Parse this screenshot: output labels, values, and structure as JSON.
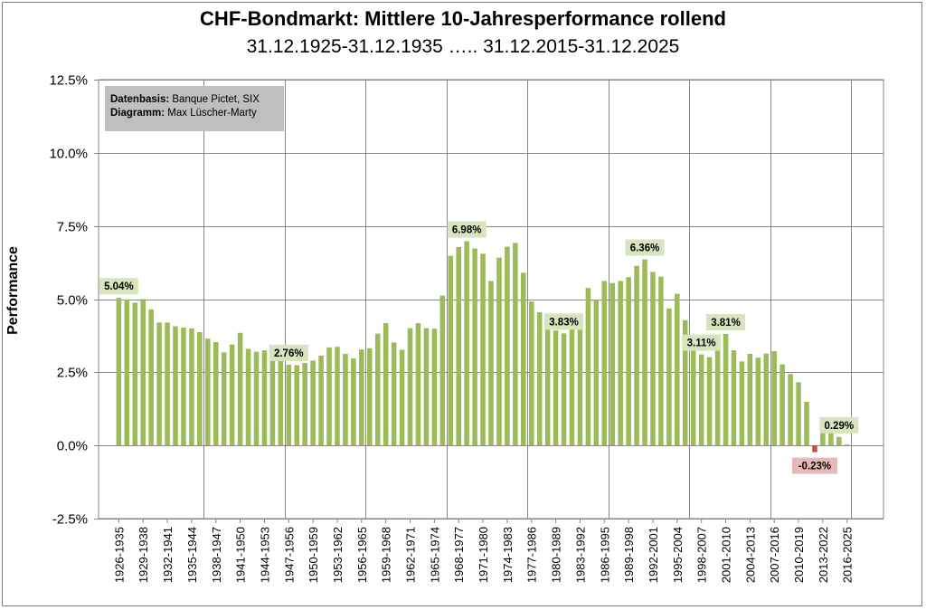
{
  "chart_data": {
    "type": "bar",
    "title": "CHF-Bondmarkt: Mittlere 10-Jahresperformance rollend",
    "subtitle": "31.12.1925-31.12.1935 ….. 31.12.2015-31.12.2025",
    "ylabel": "Performance",
    "xlabel": "",
    "ylim": [
      -2.5,
      12.5
    ],
    "yticks": [
      -2.5,
      0.0,
      2.5,
      5.0,
      7.5,
      10.0,
      12.5
    ],
    "ytick_labels": [
      "-2.5%",
      "0.0%",
      "2.5%",
      "5.0%",
      "7.5%",
      "10.0%",
      "12.5%"
    ],
    "grid": true,
    "legend": "none",
    "source_box": {
      "line1_label": "Datenbasis:",
      "line1_value": "Banque Pictet, SIX",
      "line2_label": "Diagramm:",
      "line2_value": "Max Lüscher-Marty"
    },
    "tick_labels": [
      "1926-1935",
      "1929-1938",
      "1932-1941",
      "1935-1944",
      "1938-1947",
      "1941-1950",
      "1944-1953",
      "1947-1956",
      "1950-1959",
      "1953-1962",
      "1956-1965",
      "1959-1968",
      "1962-1971",
      "1965-1974",
      "1968-1977",
      "1971-1980",
      "1974-1983",
      "1977-1986",
      "1980-1989",
      "1983-1992",
      "1986-1995",
      "1989-1998",
      "1992-2001",
      "1995-2004",
      "1998-2007",
      "2001-2010",
      "2004-2013",
      "2007-2016",
      "2010-2019",
      "2013-2022",
      "2016-2025"
    ],
    "categories": [
      "1926-1935",
      "1927-1936",
      "1928-1937",
      "1929-1938",
      "1930-1939",
      "1931-1940",
      "1932-1941",
      "1933-1942",
      "1934-1943",
      "1935-1944",
      "1936-1945",
      "1937-1946",
      "1938-1947",
      "1939-1948",
      "1940-1949",
      "1941-1950",
      "1942-1951",
      "1943-1952",
      "1944-1953",
      "1945-1954",
      "1946-1955",
      "1947-1956",
      "1948-1957",
      "1949-1958",
      "1950-1959",
      "1951-1960",
      "1952-1961",
      "1953-1962",
      "1954-1963",
      "1955-1964",
      "1956-1965",
      "1957-1966",
      "1958-1967",
      "1959-1968",
      "1960-1969",
      "1961-1970",
      "1962-1971",
      "1963-1972",
      "1964-1973",
      "1965-1974",
      "1966-1975",
      "1967-1976",
      "1968-1977",
      "1969-1978",
      "1970-1979",
      "1971-1980",
      "1972-1981",
      "1973-1982",
      "1974-1983",
      "1975-1984",
      "1976-1985",
      "1977-1986",
      "1978-1987",
      "1979-1988",
      "1980-1989",
      "1981-1990",
      "1982-1991",
      "1983-1992",
      "1984-1993",
      "1985-1994",
      "1986-1995",
      "1987-1996",
      "1988-1997",
      "1989-1998",
      "1990-1999",
      "1991-2000",
      "1992-2001",
      "1993-2002",
      "1994-2003",
      "1995-2004",
      "1996-2005",
      "1997-2006",
      "1998-2007",
      "1999-2008",
      "2000-2009",
      "2001-2010",
      "2002-2011",
      "2003-2012",
      "2004-2013",
      "2005-2014",
      "2006-2015",
      "2007-2016",
      "2008-2017",
      "2009-2018",
      "2010-2019",
      "2011-2020",
      "2012-2021",
      "2013-2022",
      "2014-2023",
      "2015-2024",
      "2016-2025"
    ],
    "values": [
      5.04,
      4.99,
      4.88,
      5.0,
      4.65,
      4.2,
      4.2,
      4.07,
      4.03,
      4.0,
      3.87,
      3.65,
      3.53,
      3.18,
      3.45,
      3.85,
      3.3,
      3.2,
      3.25,
      3.27,
      3.24,
      2.76,
      2.74,
      2.82,
      2.9,
      3.07,
      3.35,
      3.37,
      3.13,
      2.97,
      3.28,
      3.32,
      3.82,
      4.18,
      3.52,
      3.27,
      4.01,
      4.18,
      4.01,
      3.99,
      5.12,
      6.48,
      6.78,
      6.98,
      6.73,
      6.55,
      5.62,
      6.42,
      6.79,
      6.92,
      5.9,
      4.92,
      4.55,
      4.1,
      3.93,
      3.83,
      3.98,
      4.3,
      5.38,
      4.97,
      5.62,
      5.55,
      5.62,
      5.75,
      6.14,
      6.36,
      5.93,
      5.77,
      4.68,
      5.18,
      4.28,
      3.6,
      3.11,
      3.02,
      3.74,
      3.81,
      3.25,
      2.87,
      3.13,
      3.0,
      3.14,
      3.22,
      2.77,
      2.44,
      2.16,
      1.49,
      -0.23,
      0.58,
      0.45,
      0.29,
      0.03
    ],
    "annotations": [
      {
        "index": 0,
        "text": "5.04%"
      },
      {
        "index": 21,
        "text": "2.76%"
      },
      {
        "index": 43,
        "text": "6.98%"
      },
      {
        "index": 55,
        "text": "3.83%"
      },
      {
        "index": 65,
        "text": "6.36%"
      },
      {
        "index": 72,
        "text": "3.11%"
      },
      {
        "index": 75,
        "text": "3.81%"
      },
      {
        "index": 86,
        "text": "-0.23%"
      },
      {
        "index": 89,
        "text": "0.29%"
      }
    ],
    "colors": {
      "positive_bar": "#9bbb59",
      "negative_bar": "#c0504d",
      "label_box": "#d7e4bd",
      "negative_label_box": "#e6b9b8",
      "grid": "#868686"
    }
  }
}
